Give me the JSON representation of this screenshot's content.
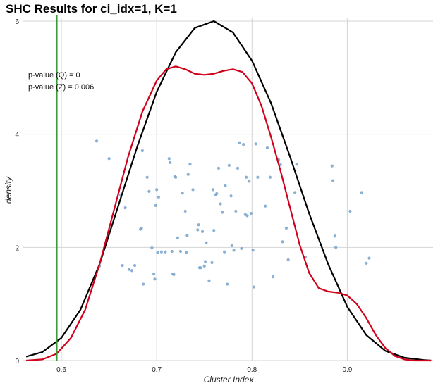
{
  "chart_data": {
    "type": "line",
    "title": "SHC Results for ci_idx=1, K=1",
    "xlabel": "Cluster Index",
    "ylabel": "density",
    "xlim": [
      0.56,
      0.99
    ],
    "ylim": [
      0,
      6.05
    ],
    "xticks": [
      0.6,
      0.7,
      0.8,
      0.9
    ],
    "xtick_labels": [
      "0.6",
      "0.7",
      "0.8",
      "0.9"
    ],
    "yticks": [
      0,
      2,
      4,
      6
    ],
    "ytick_labels": [
      "0",
      "2",
      "4",
      "6"
    ],
    "grid": true,
    "annotations": [
      "p-value (Q) = 0",
      "p-value (Z) = 0.006"
    ],
    "vline": {
      "x": 0.595,
      "color": "#3a9a3a"
    },
    "colors": {
      "red": "#d0021b",
      "black": "#000000",
      "points": "#7ba7d0",
      "grid": "#d4d4d4"
    },
    "series": [
      {
        "style": "black-line",
        "x": [
          0.563,
          0.58,
          0.6,
          0.62,
          0.64,
          0.66,
          0.68,
          0.7,
          0.72,
          0.74,
          0.76,
          0.78,
          0.8,
          0.82,
          0.84,
          0.86,
          0.88,
          0.9,
          0.92,
          0.94,
          0.96,
          0.98,
          0.988
        ],
        "y": [
          0.07,
          0.15,
          0.4,
          0.9,
          1.7,
          2.75,
          3.8,
          4.75,
          5.45,
          5.88,
          6.0,
          5.8,
          5.3,
          4.55,
          3.6,
          2.6,
          1.7,
          0.95,
          0.45,
          0.17,
          0.05,
          0.01,
          0.0
        ]
      },
      {
        "style": "red-line",
        "x": [
          0.563,
          0.58,
          0.595,
          0.61,
          0.625,
          0.64,
          0.655,
          0.67,
          0.685,
          0.7,
          0.71,
          0.72,
          0.73,
          0.74,
          0.75,
          0.76,
          0.77,
          0.78,
          0.79,
          0.8,
          0.81,
          0.82,
          0.83,
          0.84,
          0.85,
          0.86,
          0.87,
          0.88,
          0.89,
          0.9,
          0.91,
          0.92,
          0.93,
          0.94,
          0.95,
          0.96,
          0.97,
          0.988
        ],
        "y": [
          0.0,
          0.02,
          0.12,
          0.4,
          0.9,
          1.7,
          2.65,
          3.6,
          4.4,
          4.95,
          5.15,
          5.2,
          5.15,
          5.07,
          5.05,
          5.07,
          5.12,
          5.15,
          5.1,
          4.9,
          4.5,
          3.95,
          3.35,
          2.7,
          2.05,
          1.55,
          1.28,
          1.22,
          1.2,
          1.15,
          1.0,
          0.75,
          0.45,
          0.22,
          0.08,
          0.02,
          0.0,
          0.0
        ]
      }
    ],
    "points": {
      "x": [
        0.637,
        0.64,
        0.65,
        0.662,
        0.664,
        0.667,
        0.671,
        0.674,
        0.677,
        0.683,
        0.684,
        0.685,
        0.686,
        0.69,
        0.692,
        0.695,
        0.697,
        0.698,
        0.699,
        0.7,
        0.701,
        0.702,
        0.705,
        0.709,
        0.713,
        0.714,
        0.716,
        0.717,
        0.718,
        0.719,
        0.72,
        0.722,
        0.725,
        0.727,
        0.73,
        0.731,
        0.732,
        0.733,
        0.735,
        0.738,
        0.743,
        0.744,
        0.745,
        0.746,
        0.748,
        0.75,
        0.751,
        0.752,
        0.755,
        0.758,
        0.759,
        0.76,
        0.762,
        0.763,
        0.765,
        0.767,
        0.769,
        0.771,
        0.772,
        0.774,
        0.776,
        0.778,
        0.779,
        0.781,
        0.783,
        0.785,
        0.787,
        0.789,
        0.791,
        0.793,
        0.794,
        0.795,
        0.797,
        0.799,
        0.801,
        0.802,
        0.804,
        0.806,
        0.814,
        0.816,
        0.819,
        0.822,
        0.828,
        0.83,
        0.832,
        0.836,
        0.838,
        0.845,
        0.847,
        0.856,
        0.884,
        0.885,
        0.887,
        0.888,
        0.903,
        0.915,
        0.92,
        0.923
      ],
      "y": [
        3.88,
        1.67,
        3.57,
        2.92,
        1.68,
        2.7,
        1.61,
        1.59,
        1.68,
        2.32,
        2.34,
        3.71,
        1.35,
        3.24,
        2.99,
        1.99,
        1.53,
        1.44,
        2.74,
        3.02,
        1.91,
        2.89,
        1.92,
        1.92,
        3.57,
        3.5,
        1.93,
        1.53,
        1.52,
        3.25,
        3.24,
        2.17,
        1.93,
        2.96,
        2.64,
        1.91,
        2.21,
        3.29,
        3.47,
        3.02,
        2.31,
        2.4,
        1.64,
        1.64,
        2.28,
        1.67,
        1.75,
        2.08,
        1.41,
        1.73,
        3.02,
        2.3,
        2.93,
        2.95,
        3.4,
        2.77,
        2.62,
        1.92,
        3.09,
        1.35,
        3.45,
        2.91,
        2.03,
        1.95,
        2.64,
        3.4,
        3.85,
        1.98,
        3.82,
        2.58,
        3.24,
        2.56,
        3.17,
        2.6,
        1.95,
        1.3,
        3.83,
        3.24,
        2.73,
        3.76,
        3.24,
        1.48,
        3.55,
        3.46,
        2.1,
        2.34,
        1.78,
        2.97,
        3.47,
        1.83,
        3.44,
        3.18,
        2.2,
        2.0,
        2.64,
        2.97,
        1.72,
        1.81
      ]
    }
  }
}
